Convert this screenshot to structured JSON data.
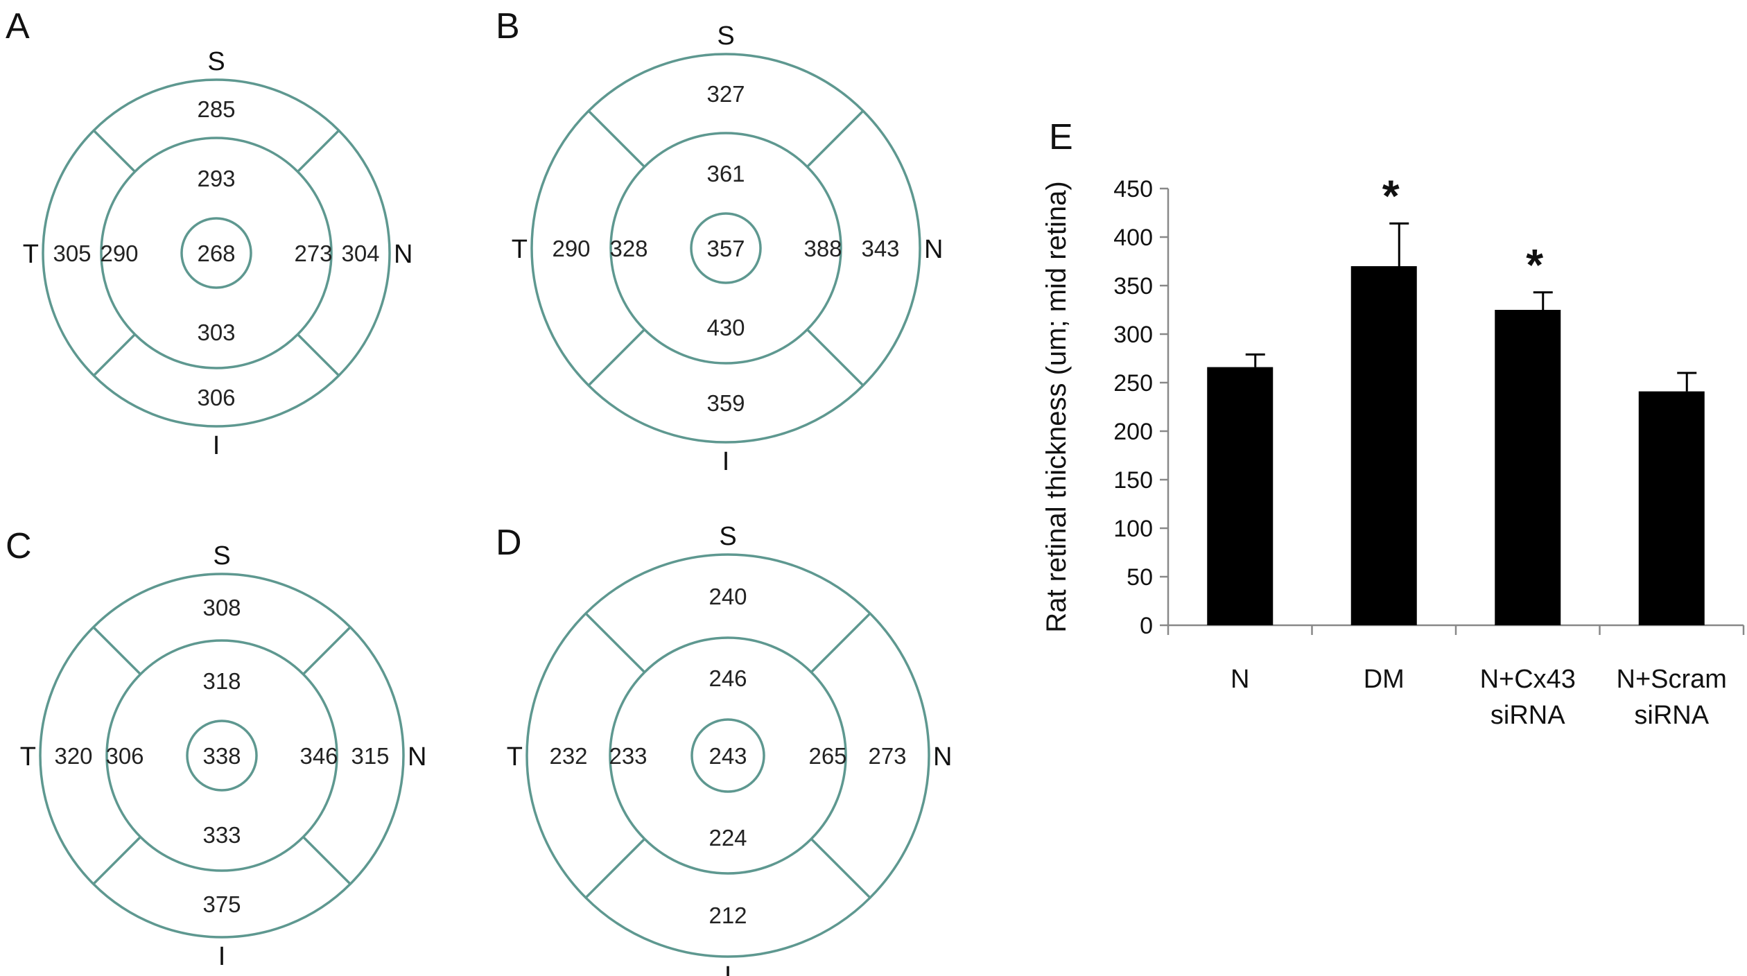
{
  "maps": [
    {
      "letter": "A",
      "labels": {
        "S": "S",
        "T": "T",
        "N": "N",
        "I": "I"
      },
      "values": {
        "center": "268",
        "inner_s": "293",
        "inner_i": "303",
        "inner_t": "290",
        "inner_n": "273",
        "outer_s": "285",
        "outer_i": "306",
        "outer_t": "305",
        "outer_n": "304"
      }
    },
    {
      "letter": "B",
      "labels": {
        "S": "S",
        "T": "T",
        "N": "N",
        "I": "I"
      },
      "values": {
        "center": "357",
        "inner_s": "361",
        "inner_i": "430",
        "inner_t": "328",
        "inner_n": "388",
        "outer_s": "327",
        "outer_i": "359",
        "outer_t": "290",
        "outer_n": "343"
      }
    },
    {
      "letter": "C",
      "labels": {
        "S": "S",
        "T": "T",
        "N": "N",
        "I": "I"
      },
      "values": {
        "center": "338",
        "inner_s": "318",
        "inner_i": "333",
        "inner_t": "306",
        "inner_n": "346",
        "outer_s": "308",
        "outer_i": "375",
        "outer_t": "320",
        "outer_n": "315"
      }
    },
    {
      "letter": "D",
      "labels": {
        "S": "S",
        "T": "T",
        "N": "N",
        "I": "I"
      },
      "values": {
        "center": "243",
        "inner_s": "246",
        "inner_i": "224",
        "inner_t": "233",
        "inner_n": "265",
        "outer_s": "240",
        "outer_i": "212",
        "outer_t": "232",
        "outer_n": "273"
      }
    }
  ],
  "colors": {
    "map_line": "#5e9890",
    "bar": "#000000",
    "axis": "#888888"
  },
  "chart_data": {
    "type": "bar",
    "panel_letter": "E",
    "categories": [
      "N",
      "DM",
      "N+Cx43 siRNA",
      "N+Scram siRNA"
    ],
    "category_lines": [
      [
        "N"
      ],
      [
        "DM"
      ],
      [
        "N+Cx43",
        "siRNA"
      ],
      [
        "N+Scram",
        "siRNA"
      ]
    ],
    "values": [
      266,
      370,
      325,
      241
    ],
    "errors": [
      13,
      44,
      18,
      19
    ],
    "significance": [
      "",
      "*",
      "*",
      ""
    ],
    "ylabel": "Rat retinal thickness (um; mid retina)",
    "xlabel": "",
    "ylim": [
      0,
      450
    ],
    "yticks": [
      0,
      50,
      100,
      150,
      200,
      250,
      300,
      350,
      400,
      450
    ],
    "grid": false,
    "legend": "none"
  }
}
